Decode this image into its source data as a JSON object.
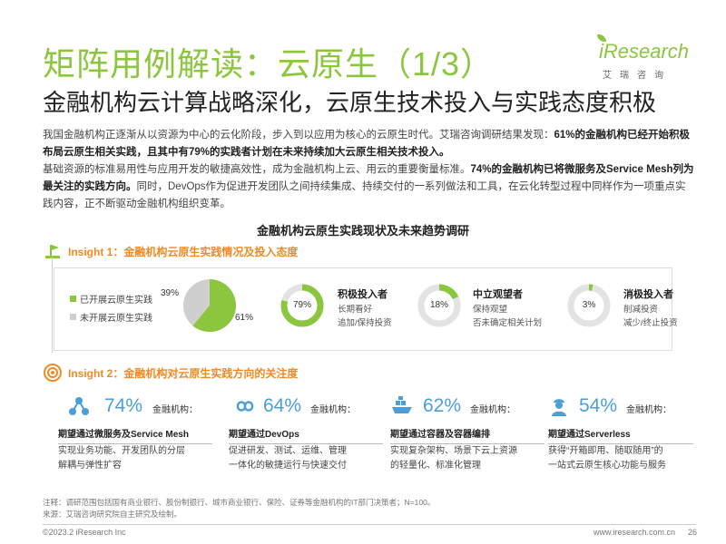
{
  "header": {
    "title": "矩阵用例解读：云原生（1/3）",
    "subtitle": "金融机构云计算战略深化，云原生技术投入与实践态度积极",
    "logo_text": "iResearch",
    "logo_cn": "艾瑞咨询"
  },
  "intro": {
    "p1_normal": "我国金融机构正逐渐从以资源为中心的云化阶段，步入到以应用为核心的云原生时代。艾瑞咨询调研结果发现：",
    "p1_bold": "61%的金融机构已经开始积极布局云原生相关实践，且其中有79%的实践者计划在未来持续加大云原生相关技术投入。",
    "p2_normal": "基础资源的标准易用性与应用开发的敏捷高效性，成为金融机构上云、用云的重要衡量标准。",
    "p2_bold": "74%的金融机构已将微服务及Service Mesh列为最关注的实践方向。",
    "p2_tail": "同时，DevOps作为促进开发团队之间持续集成、持续交付的一系列做法和工具，在云化转型过程中同样作为一项重点实践内容，正不断驱动金融机构组织变革。"
  },
  "section_title": "金融机构云原生实践现状及未来趋势调研",
  "insight1": {
    "label": "Insight 1：金融机构云原生实践情况及投入态度",
    "legend": [
      {
        "label": "已开展云原生实践",
        "color": "#8cc63f"
      },
      {
        "label": "未开展云原生实践",
        "color": "#cfcfcf"
      }
    ],
    "pie": {
      "done_pct": "61%",
      "not_pct": "39%",
      "done_value": 61,
      "not_value": 39
    },
    "attitudes": [
      {
        "pct": "79%",
        "value": 79,
        "title": "积极投入者",
        "desc1": "长期看好",
        "desc2": "追加/保持投资"
      },
      {
        "pct": "18%",
        "value": 18,
        "title": "中立观望者",
        "desc1": "保持观望",
        "desc2": "否未确定相关计划"
      },
      {
        "pct": "3%",
        "value": 3,
        "title": "消极投入者",
        "desc1": "削减投资",
        "desc2": "减少/终止投资"
      }
    ]
  },
  "insight2": {
    "label": "Insight 2：金融机构对云原生实践方向的关注度",
    "cards": [
      {
        "pct": "74%",
        "org": "金融机构：",
        "head": "期望通过微服务及Service Mesh",
        "desc1": "实现业务功能、开发团队的分层",
        "desc2": "解耦与弹性扩容"
      },
      {
        "pct": "64%",
        "org": "金融机构：",
        "head": "期望通过DevOps",
        "desc1": "促进研发、测试、运维、管理",
        "desc2": "一体化的敏捷运行与快速交付"
      },
      {
        "pct": "62%",
        "org": "金融机构：",
        "head": "期望通过容器及容器编排",
        "desc1": "实现复杂架构、场景下云上资源",
        "desc2": "的轻量化、标准化管理"
      },
      {
        "pct": "54%",
        "org": "金融机构：",
        "head": "期望通过Serverless",
        "desc1": "获得“开箱即用、随取随用”的",
        "desc2": "一站式云原生核心功能与服务"
      }
    ]
  },
  "notes": {
    "n1": "注释：调研范围包括国有商业银行、股份制银行、城市商业银行、保险、证券等金融机构的IT部门决策者；N=100。",
    "n2": "来源：艾瑞咨询研究院自主研究及绘制。"
  },
  "footer": {
    "copyright": "©2023.2  iResearch Inc",
    "url": "www.iresearch.com.cn",
    "page": "26"
  }
}
